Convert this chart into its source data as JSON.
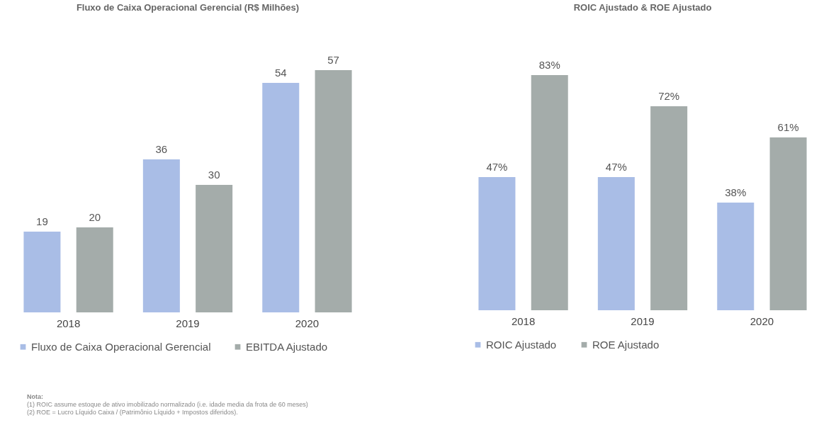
{
  "chart_data": [
    {
      "type": "bar",
      "title": "Fluxo de Caixa Operacional Gerencial (R$ Milhões)",
      "categories": [
        "2018",
        "2019",
        "2020"
      ],
      "series": [
        {
          "name": "Fluxo de Caixa Operacional Gerencial",
          "color": "#a9bde6",
          "values": [
            19,
            36,
            54
          ]
        },
        {
          "name": "EBITDA Ajustado",
          "color": "#a4acaa",
          "values": [
            20,
            30,
            57
          ]
        }
      ],
      "data_labels": true,
      "legend": "bottom",
      "annotations": [
        "Nota:",
        "(1)  ROIC assume estoque de ativo imobilizado normalizado (i.e. idade media da frota de 60 meses)",
        "(2)  ROE = Lucro Líquido Caixa / (Patrimônio Líquido + Impostos diferidos)."
      ]
    },
    {
      "type": "bar",
      "title": "ROIC Ajustado & ROE Ajustado",
      "categories": [
        "2018",
        "2019",
        "2020"
      ],
      "series": [
        {
          "name": "ROIC Ajustado",
          "color": "#a9bde6",
          "values": [
            47,
            47,
            38
          ],
          "value_labels": [
            "47%",
            "47%",
            "38%"
          ]
        },
        {
          "name": "ROE Ajustado",
          "color": "#a4acaa",
          "values": [
            83,
            72,
            61
          ],
          "value_labels": [
            "83%",
            "72%",
            "61%"
          ]
        }
      ],
      "legend": "bottom"
    }
  ]
}
